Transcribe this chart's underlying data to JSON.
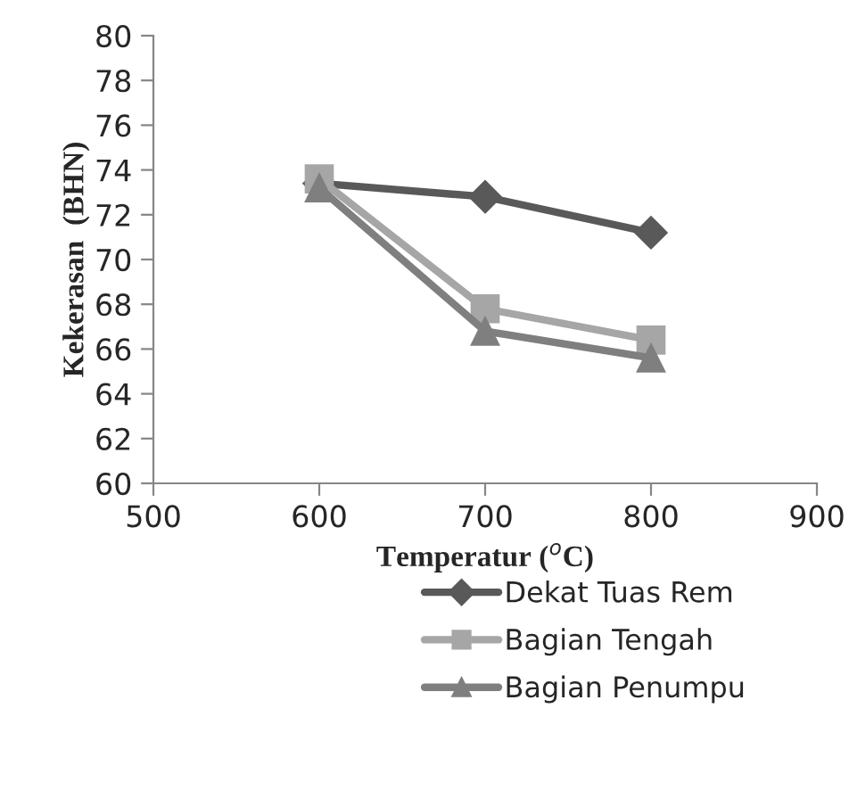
{
  "chart_data": {
    "type": "line",
    "xlabel": "Temperatur ($^{o}$C)",
    "ylabel": "Kekerasan  (BHN)",
    "x": [
      600,
      700,
      800
    ],
    "series": [
      {
        "name": "Dekat Tuas Rem",
        "color": "#595959",
        "marker": "diamond",
        "values": [
          73.4,
          72.8,
          71.2
        ]
      },
      {
        "name": "Bagian Tengah",
        "color": "#a6a6a6",
        "marker": "square",
        "values": [
          73.6,
          67.8,
          66.4
        ]
      },
      {
        "name": "Bagian Penumpu",
        "color": "#7f7f7f",
        "marker": "triangle",
        "values": [
          73.2,
          66.8,
          65.6
        ]
      }
    ],
    "xlim": [
      500,
      900
    ],
    "xticks": [
      500,
      600,
      700,
      800,
      900
    ],
    "ylim": [
      60,
      80
    ],
    "yticks": [
      60,
      62,
      64,
      66,
      68,
      70,
      72,
      74,
      76,
      78,
      80
    ],
    "grid": false,
    "legend": "bottom",
    "line_style": "solid"
  }
}
